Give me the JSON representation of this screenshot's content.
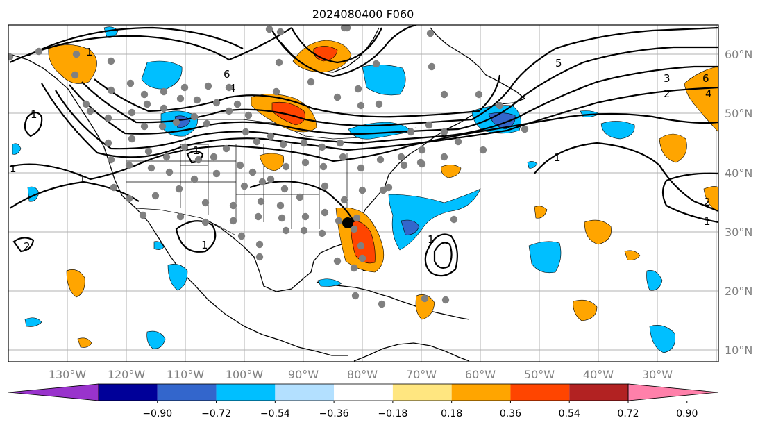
{
  "title": "2024080400 F060",
  "map": {
    "lon_labels": [
      "130°W",
      "120°W",
      "110°W",
      "100°W",
      "90°W",
      "80°W",
      "70°W",
      "60°W",
      "50°W",
      "40°W",
      "30°W"
    ],
    "lat_labels": [
      "60°N",
      "50°N",
      "40°N",
      "30°N",
      "20°N",
      "10°N"
    ],
    "contour_labels": [
      "1",
      "2",
      "3",
      "4",
      "5",
      "6"
    ]
  },
  "colorbar": {
    "ticks": [
      "−0.90",
      "−0.72",
      "−0.54",
      "−0.36",
      "−0.18",
      "0.18",
      "0.36",
      "0.54",
      "0.72",
      "0.90"
    ],
    "colors": [
      "#9933cc",
      "#000099",
      "#3366cc",
      "#00bfff",
      "#b3e0ff",
      "#ffffff",
      "#ffe680",
      "#ffa500",
      "#ff4500",
      "#b22222",
      "#ff80aa"
    ]
  },
  "colors": {
    "positive_light": "#ffa500",
    "positive_mid": "#ff4500",
    "positive_strong": "#ff3300",
    "negative_light": "#00bfff",
    "negative_mid": "#3366cc",
    "station_dot": "#808080",
    "storm_center": "#000000",
    "grid": "#b0b0b0"
  }
}
